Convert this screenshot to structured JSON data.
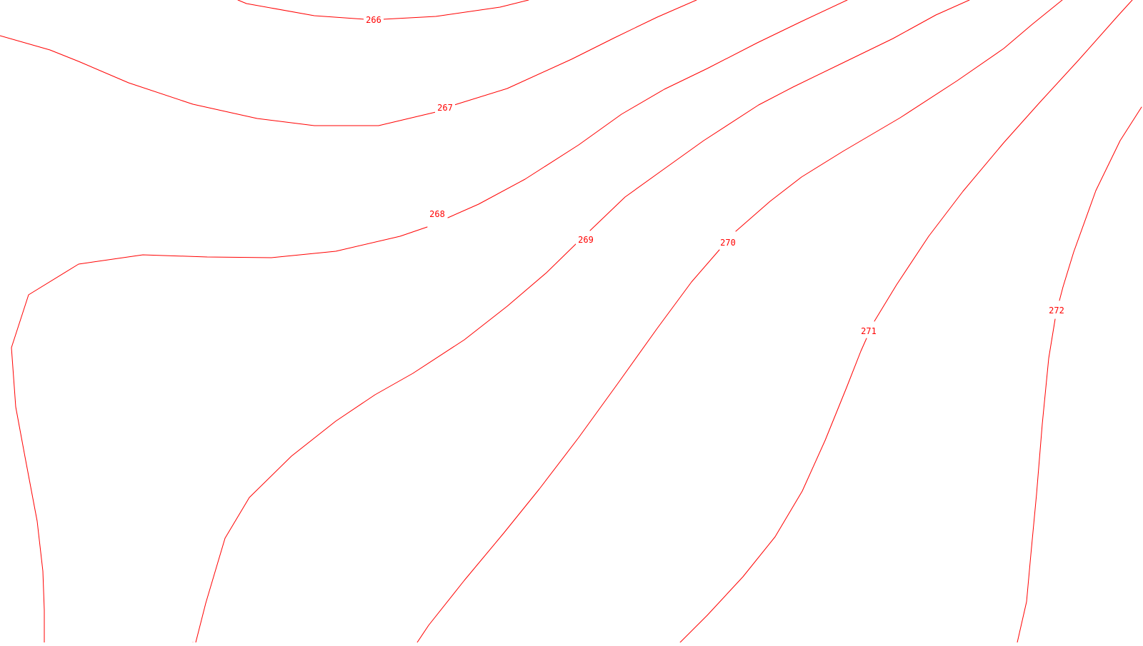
{
  "map": {
    "line_color": "#ff0000",
    "background_color": "#ffffff",
    "contours": [
      {
        "id": "266",
        "label": "266"
      },
      {
        "id": "267",
        "label": "267"
      },
      {
        "id": "268",
        "label": "268"
      },
      {
        "id": "269",
        "label": "269"
      },
      {
        "id": "270",
        "label": "270"
      },
      {
        "id": "271",
        "label": "271"
      },
      {
        "id": "272",
        "label": "272"
      }
    ]
  }
}
